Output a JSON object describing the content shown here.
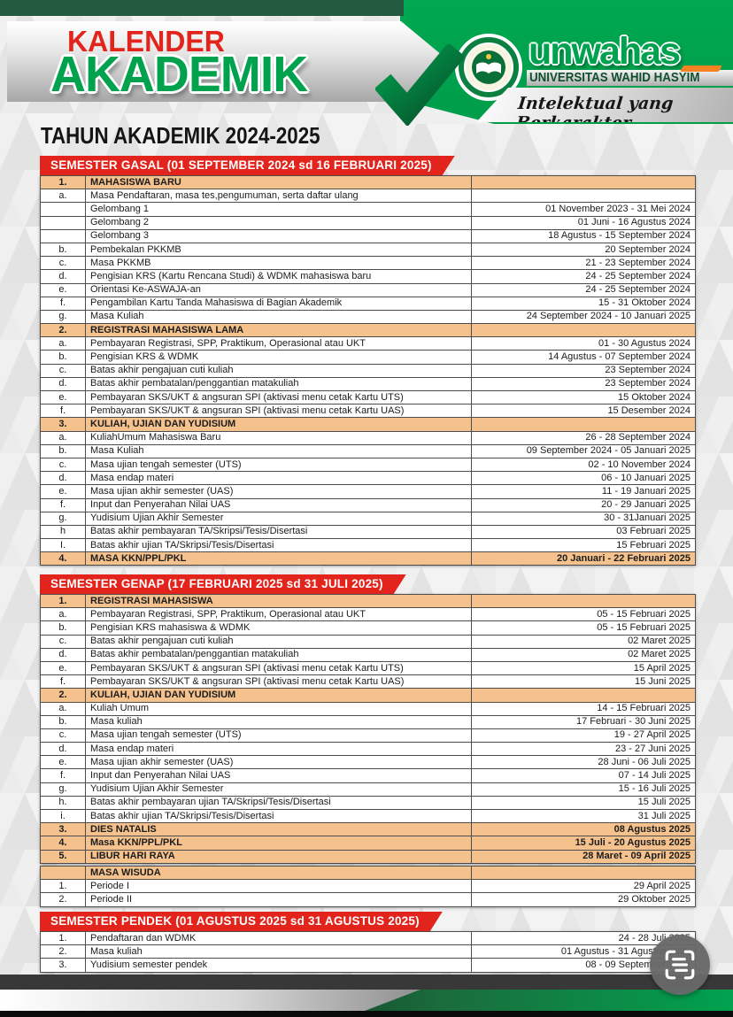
{
  "brand": {
    "title_line1": "KALENDER",
    "title_line2": "AKADEMIK",
    "subtitle": "TAHUN AKADEMIK 2024-2025",
    "logo_name": "unwahas",
    "university": "UNIVERSITAS WAHID HASYIM",
    "tagline": "Intelektual yang Berkarakter"
  },
  "colors": {
    "brand_green": "#00A24E",
    "dark_green": "#235B40",
    "banner_red": "#E2241C",
    "header_row_bg": "#F5C28E",
    "footer_green": "#00A24F"
  },
  "floating_button": {
    "icon": "scan-text-icon"
  },
  "sections": [
    {
      "id": "gasal",
      "banner": "SEMESTER GASAL (01 SEPTEMBER 2024 sd 16 FEBRUARI 2025)",
      "rows": [
        {
          "no": "1.",
          "label": "MAHASISWA BARU",
          "date": "",
          "header": true
        },
        {
          "no": "a.",
          "label": "Masa Pendaftaran, masa tes,pengumuman, serta daftar ulang",
          "date": ""
        },
        {
          "no": "",
          "label": "Gelombang 1",
          "date": "01 November 2023 - 31 Mei 2024"
        },
        {
          "no": "",
          "label": "Gelombang 2",
          "date": "01 Juni - 16 Agustus 2024"
        },
        {
          "no": "",
          "label": "Gelombang 3",
          "date": "18 Agustus - 15 September 2024"
        },
        {
          "no": "b.",
          "label": "Pembekalan PKKMB",
          "date": "20 September 2024"
        },
        {
          "no": "c.",
          "label": "Masa PKKMB",
          "date": "21 - 23 September 2024"
        },
        {
          "no": "d.",
          "label": "Pengisian KRS (Kartu Rencana Studi) & WDMK mahasiswa baru",
          "date": "24 - 25 September 2024"
        },
        {
          "no": "e.",
          "label": "Orientasi Ke-ASWAJA-an",
          "date": "24 - 25 September 2024"
        },
        {
          "no": "f.",
          "label": "Pengambilan Kartu Tanda Mahasiswa di Bagian Akademik",
          "date": "15 - 31 Oktober 2024"
        },
        {
          "no": "g.",
          "label": "Masa Kuliah",
          "date": "24 September 2024 - 10 Januari 2025"
        },
        {
          "no": "2.",
          "label": "REGISTRASI MAHASISWA  LAMA",
          "date": "",
          "header": true
        },
        {
          "no": "a.",
          "label": "Pembayaran Registrasi, SPP, Praktikum, Operasional atau UKT",
          "date": "01 - 30 Agustus 2024"
        },
        {
          "no": "b.",
          "label": "Pengisian KRS & WDMK",
          "date": "14 Agustus - 07 September 2024"
        },
        {
          "no": "c.",
          "label": "Batas akhir pengajuan cuti kuliah",
          "date": "23 September 2024"
        },
        {
          "no": "d.",
          "label": "Batas akhir pembatalan/penggantian matakuliah",
          "date": "23 September 2024"
        },
        {
          "no": "e.",
          "label": "Pembayaran SKS/UKT & angsuran SPI (aktivasi menu cetak Kartu UTS)",
          "date": "15 Oktober 2024"
        },
        {
          "no": "f.",
          "label": "Pembayaran SKS/UKT & angsuran SPI (aktivasi menu cetak Kartu UAS)",
          "date": "15 Desember 2024"
        },
        {
          "no": "3.",
          "label": "KULIAH, UJIAN DAN YUDISIUM",
          "date": "",
          "header": true
        },
        {
          "no": "a.",
          "label": "KuliahUmum Mahasiswa Baru",
          "date": "26 - 28 September 2024"
        },
        {
          "no": "b.",
          "label": "Masa Kuliah",
          "date": "09 September 2024  - 05 Januari 2025"
        },
        {
          "no": "c.",
          "label": "Masa ujian tengah semester (UTS)",
          "date": "02 - 10 November 2024"
        },
        {
          "no": "d.",
          "label": "Masa endap materi",
          "date": "06 - 10 Januari 2025"
        },
        {
          "no": "e.",
          "label": "Masa ujian akhir semester (UAS)",
          "date": "11 - 19 Januari 2025"
        },
        {
          "no": "f.",
          "label": "Input dan Penyerahan Nilai UAS",
          "date": "20 - 29 Januari 2025"
        },
        {
          "no": "g.",
          "label": "Yudisium Ujian Akhir Semester",
          "date": "30 - 31Januari 2025"
        },
        {
          "no": "h",
          "label": "Batas akhir pembayaran TA/Skripsi/Tesis/Disertasi",
          "date": "03 Februari 2025"
        },
        {
          "no": "I.",
          "label": "Batas akhir ujian TA/Skripsi/Tesis/Disertasi",
          "date": "15 Februari 2025"
        },
        {
          "no": "4.",
          "label": "MASA KKN/PPL/PKL",
          "date": "20 Januari - 22 Februari 2025",
          "header": true
        }
      ]
    },
    {
      "id": "genap",
      "banner": "SEMESTER GENAP (17 FEBRUARI 2025 sd 31 JULI 2025)",
      "rows": [
        {
          "no": "1.",
          "label": "REGISTRASI MAHASISWA",
          "date": "",
          "header": true
        },
        {
          "no": "a.",
          "label": "Pembayaran Registrasi, SPP, Praktikum, Operasional atau UKT",
          "date": "05 - 15 Februari 2025"
        },
        {
          "no": "b.",
          "label": "Pengisian KRS mahasiswa & WDMK",
          "date": "05 - 15 Februari 2025"
        },
        {
          "no": "c.",
          "label": "Batas akhir pengajuan cuti kuliah",
          "date": "02 Maret 2025"
        },
        {
          "no": "d.",
          "label": "Batas akhir pembatalan/penggantian matakuliah",
          "date": "02 Maret 2025"
        },
        {
          "no": "e.",
          "label": "Pembayaran SKS/UKT & angsuran SPI (aktivasi menu cetak Kartu UTS)",
          "date": "15 April 2025"
        },
        {
          "no": "f.",
          "label": "Pembayaran SKS/UKT & angsuran SPI (aktivasi menu cetak Kartu UAS)",
          "date": "15 Juni 2025"
        },
        {
          "no": "2.",
          "label": "KULIAH, UJIAN DAN YUDISIUM",
          "date": "",
          "header": true
        },
        {
          "no": "a.",
          "label": "Kuliah Umum",
          "date": "14 - 15 Februari 2025"
        },
        {
          "no": "b.",
          "label": "Masa kuliah",
          "date": "17 Februari - 30 Juni 2025"
        },
        {
          "no": "c.",
          "label": "Masa ujian tengah semester (UTS)",
          "date": "19 - 27 April 2025"
        },
        {
          "no": "d.",
          "label": "Masa endap materi",
          "date": "23 - 27 Juni 2025"
        },
        {
          "no": "e.",
          "label": "Masa ujian akhir semester (UAS)",
          "date": "28 Juni - 06 Juli 2025"
        },
        {
          "no": "f.",
          "label": "Input dan Penyerahan Nilai UAS",
          "date": "07 - 14 Juli 2025"
        },
        {
          "no": "g.",
          "label": "Yudisium Ujian Akhir Semester",
          "date": "15 - 16 Juli 2025"
        },
        {
          "no": "h.",
          "label": "Batas akhir pembayaran ujian TA/Skripsi/Tesis/Disertasi",
          "date": "15 Juli 2025"
        },
        {
          "no": "i.",
          "label": "Batas akhir ujian TA/Skripsi/Tesis/Disertasi",
          "date": "31 Juli 2025"
        },
        {
          "no": "3.",
          "label": "DIES NATALIS",
          "date": "08 Agustus 2025",
          "header": true
        },
        {
          "no": "4.",
          "label": "Masa KKN/PPL/PKL",
          "date": "15 Juli - 20 Agustus 2025",
          "header": true
        },
        {
          "no": "5.",
          "label": "LIBUR HARI RAYA",
          "date": "28 Maret - 09 April 2025",
          "header": true
        }
      ]
    },
    {
      "id": "wisuda",
      "banner": null,
      "rows": [
        {
          "no": "",
          "label": "MASA WISUDA",
          "date": "",
          "header": true
        },
        {
          "no": "1.",
          "label": "Periode I",
          "date": "29 April 2025"
        },
        {
          "no": "2.",
          "label": "Periode II",
          "date": "29 Oktober 2025"
        }
      ]
    },
    {
      "id": "pendek",
      "banner": "SEMESTER PENDEK (01 AGUSTUS 2025 sd 31 AGUSTUS 2025)",
      "rows": [
        {
          "no": "1.",
          "label": "Pendaftaran dan WDMK",
          "date": "24 - 28 Juli 2025"
        },
        {
          "no": "2.",
          "label": "Masa kuliah",
          "date": "01 Agustus - 31 Agustus 2025"
        },
        {
          "no": "3.",
          "label": "Yudisium semester pendek",
          "date": "08 - 09 September 2025"
        }
      ]
    }
  ]
}
